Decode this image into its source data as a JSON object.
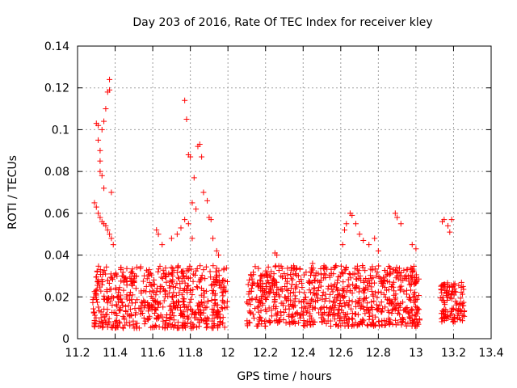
{
  "chart_data": {
    "type": "scatter",
    "title": "Day 203 of 2016, Rate Of TEC Index for receiver kley",
    "xlabel": "GPS time / hours",
    "ylabel": "ROTI / TECUs",
    "xlim": [
      11.2,
      13.4
    ],
    "ylim": [
      0,
      0.14
    ],
    "xticks": [
      "11.2",
      "11.4",
      "11.6",
      "11.8",
      "12",
      "12.2",
      "12.4",
      "12.6",
      "12.8",
      "13",
      "13.2",
      "13.4"
    ],
    "yticks": [
      "0",
      "0.02",
      "0.04",
      "0.06",
      "0.08",
      "0.1",
      "0.12",
      "0.14"
    ],
    "grid": true,
    "marker": "+",
    "color": "#ff0000",
    "series": [
      {
        "name": "ROTI",
        "segments": [
          {
            "x_start": 11.28,
            "x_end": 12.0,
            "baseline_range": [
              0.005,
              0.035
            ]
          },
          {
            "x_start": 12.1,
            "x_end": 13.02,
            "baseline_range": [
              0.006,
              0.035
            ]
          },
          {
            "x_start": 13.13,
            "x_end": 13.26,
            "baseline_range": [
              0.008,
              0.027
            ]
          }
        ],
        "points": [
          {
            "x": 11.33,
            "y": 0.1
          },
          {
            "x": 11.34,
            "y": 0.104
          },
          {
            "x": 11.35,
            "y": 0.11
          },
          {
            "x": 11.36,
            "y": 0.118
          },
          {
            "x": 11.37,
            "y": 0.119
          },
          {
            "x": 11.37,
            "y": 0.124
          },
          {
            "x": 11.3,
            "y": 0.103
          },
          {
            "x": 11.31,
            "y": 0.102
          },
          {
            "x": 11.31,
            "y": 0.095
          },
          {
            "x": 11.32,
            "y": 0.09
          },
          {
            "x": 11.32,
            "y": 0.085
          },
          {
            "x": 11.32,
            "y": 0.08
          },
          {
            "x": 11.33,
            "y": 0.078
          },
          {
            "x": 11.34,
            "y": 0.072
          },
          {
            "x": 11.38,
            "y": 0.07
          },
          {
            "x": 11.29,
            "y": 0.065
          },
          {
            "x": 11.3,
            "y": 0.063
          },
          {
            "x": 11.31,
            "y": 0.06
          },
          {
            "x": 11.32,
            "y": 0.058
          },
          {
            "x": 11.33,
            "y": 0.056
          },
          {
            "x": 11.34,
            "y": 0.055
          },
          {
            "x": 11.35,
            "y": 0.054
          },
          {
            "x": 11.36,
            "y": 0.052
          },
          {
            "x": 11.37,
            "y": 0.05
          },
          {
            "x": 11.38,
            "y": 0.048
          },
          {
            "x": 11.39,
            "y": 0.045
          },
          {
            "x": 11.77,
            "y": 0.114
          },
          {
            "x": 11.78,
            "y": 0.105
          },
          {
            "x": 11.79,
            "y": 0.088
          },
          {
            "x": 11.8,
            "y": 0.087
          },
          {
            "x": 11.82,
            "y": 0.077
          },
          {
            "x": 11.84,
            "y": 0.092
          },
          {
            "x": 11.85,
            "y": 0.093
          },
          {
            "x": 11.86,
            "y": 0.087
          },
          {
            "x": 11.87,
            "y": 0.07
          },
          {
            "x": 11.81,
            "y": 0.065
          },
          {
            "x": 11.83,
            "y": 0.062
          },
          {
            "x": 11.89,
            "y": 0.066
          },
          {
            "x": 11.9,
            "y": 0.058
          },
          {
            "x": 11.91,
            "y": 0.057
          },
          {
            "x": 11.79,
            "y": 0.055
          },
          {
            "x": 11.81,
            "y": 0.048
          },
          {
            "x": 11.92,
            "y": 0.048
          },
          {
            "x": 11.94,
            "y": 0.042
          },
          {
            "x": 11.95,
            "y": 0.04
          },
          {
            "x": 11.62,
            "y": 0.052
          },
          {
            "x": 11.63,
            "y": 0.05
          },
          {
            "x": 11.65,
            "y": 0.045
          },
          {
            "x": 11.7,
            "y": 0.048
          },
          {
            "x": 11.73,
            "y": 0.05
          },
          {
            "x": 11.75,
            "y": 0.053
          },
          {
            "x": 11.77,
            "y": 0.057
          },
          {
            "x": 12.25,
            "y": 0.041
          },
          {
            "x": 12.26,
            "y": 0.04
          },
          {
            "x": 12.45,
            "y": 0.036
          },
          {
            "x": 12.61,
            "y": 0.045
          },
          {
            "x": 12.62,
            "y": 0.052
          },
          {
            "x": 12.63,
            "y": 0.055
          },
          {
            "x": 12.65,
            "y": 0.06
          },
          {
            "x": 12.66,
            "y": 0.059
          },
          {
            "x": 12.68,
            "y": 0.055
          },
          {
            "x": 12.7,
            "y": 0.05
          },
          {
            "x": 12.72,
            "y": 0.047
          },
          {
            "x": 12.75,
            "y": 0.045
          },
          {
            "x": 12.78,
            "y": 0.048
          },
          {
            "x": 12.8,
            "y": 0.042
          },
          {
            "x": 12.89,
            "y": 0.06
          },
          {
            "x": 12.9,
            "y": 0.058
          },
          {
            "x": 12.92,
            "y": 0.055
          },
          {
            "x": 12.98,
            "y": 0.045
          },
          {
            "x": 13.0,
            "y": 0.043
          },
          {
            "x": 12.88,
            "y": 0.033
          },
          {
            "x": 12.9,
            "y": 0.03
          },
          {
            "x": 12.92,
            "y": 0.028
          },
          {
            "x": 12.95,
            "y": 0.033
          },
          {
            "x": 13.14,
            "y": 0.056
          },
          {
            "x": 13.15,
            "y": 0.057
          },
          {
            "x": 13.17,
            "y": 0.054
          },
          {
            "x": 13.18,
            "y": 0.051
          },
          {
            "x": 13.19,
            "y": 0.057
          }
        ]
      }
    ]
  }
}
